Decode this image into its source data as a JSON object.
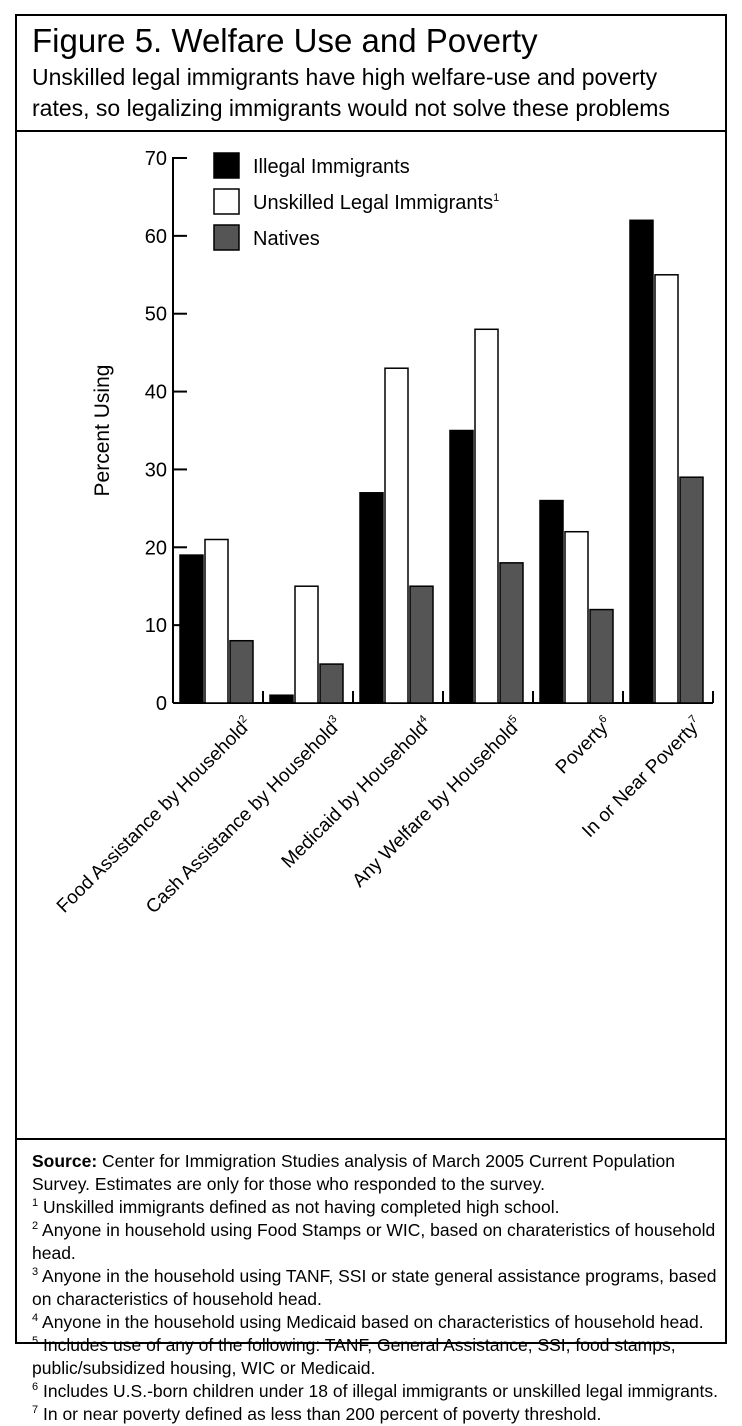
{
  "figure": {
    "title": "Figure 5. Welfare Use and Poverty",
    "subtitle": "Unskilled legal immigrants have high welfare-use and poverty rates, so legalizing immigrants would not solve these problems"
  },
  "chart_data": {
    "type": "bar",
    "ylabel": "Percent Using",
    "ylim": [
      0,
      70
    ],
    "yticks": [
      0,
      10,
      20,
      30,
      40,
      50,
      60,
      70
    ],
    "grid": false,
    "legend_position": "top-left",
    "categories": [
      {
        "label": "Food Assistance by Household",
        "sup": "2"
      },
      {
        "label": "Cash Assistance by Household",
        "sup": "3"
      },
      {
        "label": "Medicaid by Household",
        "sup": "4"
      },
      {
        "label": "Any Welfare by Household",
        "sup": "5"
      },
      {
        "label": "Poverty",
        "sup": "6"
      },
      {
        "label": "In or Near Poverty",
        "sup": "7"
      }
    ],
    "series": [
      {
        "name": "Illegal Immigrants",
        "sup": "",
        "color": "#000000",
        "values": [
          19,
          1,
          27,
          35,
          26,
          62
        ]
      },
      {
        "name": "Unskilled Legal Immigrants",
        "sup": "1",
        "color": "#ffffff",
        "values": [
          21,
          15,
          43,
          48,
          22,
          55
        ]
      },
      {
        "name": "Natives",
        "sup": "",
        "color": "#555555",
        "values": [
          8,
          5,
          15,
          18,
          12,
          29
        ]
      }
    ]
  },
  "notes": {
    "source_label": "Source:",
    "source_text": "Center for Immigration Studies analysis of March 2005 Current Population Survey. Estimates are only for those who responded to the survey.",
    "footnotes": [
      {
        "num": "1",
        "text": "Unskilled immigrants defined as not having completed high school."
      },
      {
        "num": "2",
        "text": "Anyone in household using Food Stamps or WIC, based on charateristics of household head."
      },
      {
        "num": "3",
        "text": "Anyone in the household using TANF, SSI or state general assistance programs, based on characteristics of household head."
      },
      {
        "num": "4",
        "text": "Anyone in the household using Medicaid based on characteristics of household head."
      },
      {
        "num": "5",
        "text": "Includes use of any of the following: TANF, General Assistance, SSI, food stamps, public/subsidized housing, WIC or Medicaid."
      },
      {
        "num": "6",
        "text": "Includes U.S.-born children under 18 of illegal immigrants or unskilled legal immigrants."
      },
      {
        "num": "7",
        "text": "In or near poverty defined as less than 200 percent of poverty threshold."
      }
    ]
  }
}
